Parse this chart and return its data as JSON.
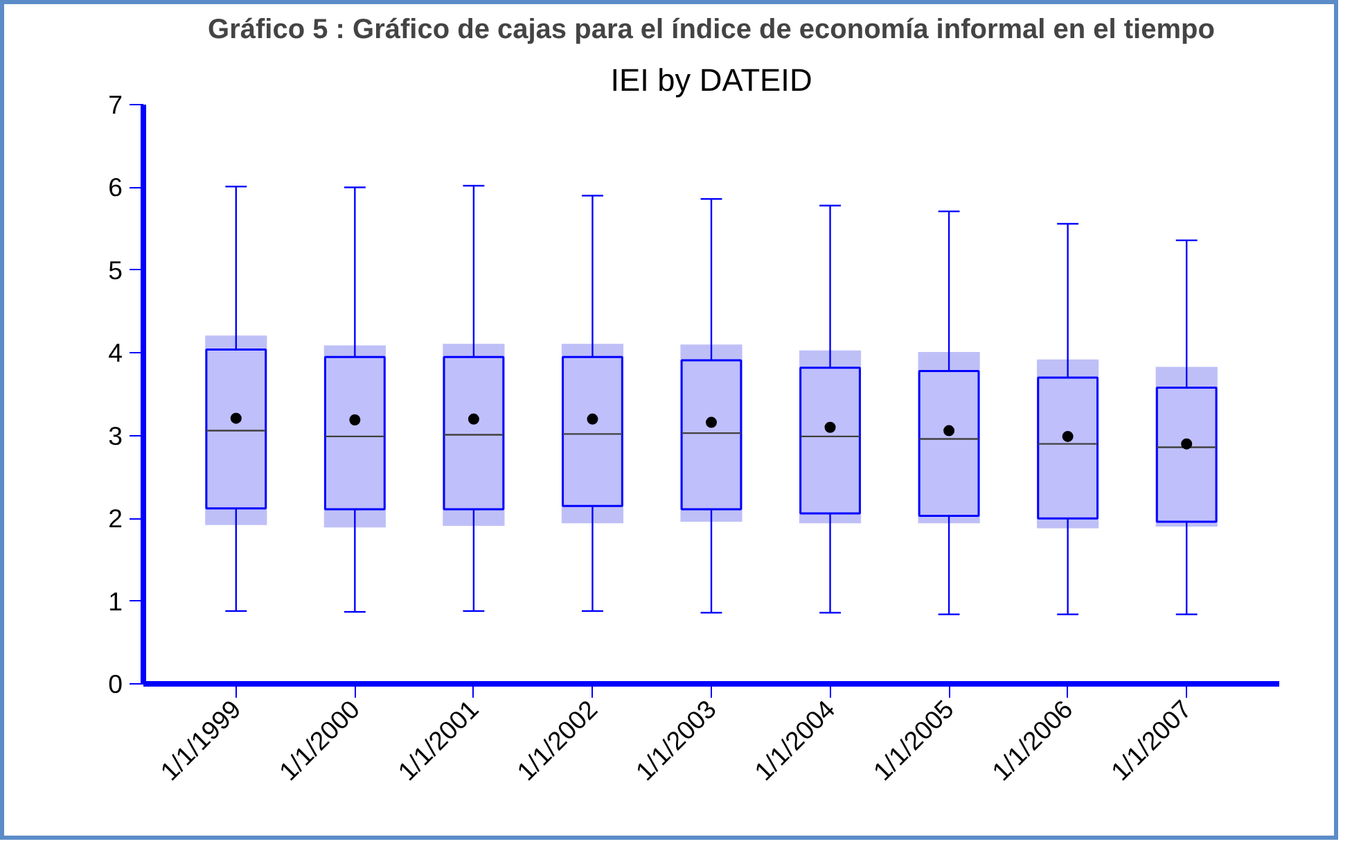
{
  "chart_data": {
    "type": "box",
    "title": "IEI by DATEID",
    "annotations": [
      "Gráfico 5 : Gráfico de cajas para el índice de economía informal en el tiempo"
    ],
    "categories": [
      "1/1/1999",
      "1/1/2000",
      "1/1/2001",
      "1/1/2002",
      "1/1/2003",
      "1/1/2004",
      "1/1/2005",
      "1/1/2006",
      "1/1/2007"
    ],
    "ylim": [
      0,
      7
    ],
    "yticks": [
      0,
      1,
      2,
      3,
      4,
      5,
      6,
      7
    ],
    "grid": false,
    "marker": "circle",
    "series": [
      {
        "type": "bar",
        "color": "#bfbff8",
        "base": [
          1.92,
          1.89,
          1.91,
          1.94,
          1.96,
          1.94,
          1.94,
          1.88,
          1.9
        ],
        "values": [
          2.29,
          2.2,
          2.2,
          2.17,
          2.14,
          2.09,
          2.07,
          2.04,
          1.93
        ]
      },
      {
        "color": "#0000ff",
        "boxes": [
          {
            "low": 0.88,
            "q1": 2.12,
            "median": 3.06,
            "q3": 4.04,
            "high": 6.01,
            "mean": 3.21
          },
          {
            "low": 0.87,
            "q1": 2.11,
            "median": 2.99,
            "q3": 3.95,
            "high": 6.0,
            "mean": 3.19
          },
          {
            "low": 0.88,
            "q1": 2.11,
            "median": 3.01,
            "q3": 3.95,
            "high": 6.02,
            "mean": 3.2
          },
          {
            "low": 0.88,
            "q1": 2.15,
            "median": 3.02,
            "q3": 3.95,
            "high": 5.9,
            "mean": 3.2
          },
          {
            "low": 0.86,
            "q1": 2.11,
            "median": 3.03,
            "q3": 3.91,
            "high": 5.86,
            "mean": 3.16
          },
          {
            "low": 0.86,
            "q1": 2.06,
            "median": 2.99,
            "q3": 3.82,
            "high": 5.78,
            "mean": 3.1
          },
          {
            "low": 0.84,
            "q1": 2.03,
            "median": 2.96,
            "q3": 3.78,
            "high": 5.71,
            "mean": 3.06
          },
          {
            "low": 0.84,
            "q1": 2.0,
            "median": 2.9,
            "q3": 3.7,
            "high": 5.56,
            "mean": 2.99
          },
          {
            "low": 0.84,
            "q1": 1.96,
            "median": 2.86,
            "q3": 3.58,
            "high": 5.36,
            "mean": 2.9
          }
        ]
      }
    ]
  }
}
